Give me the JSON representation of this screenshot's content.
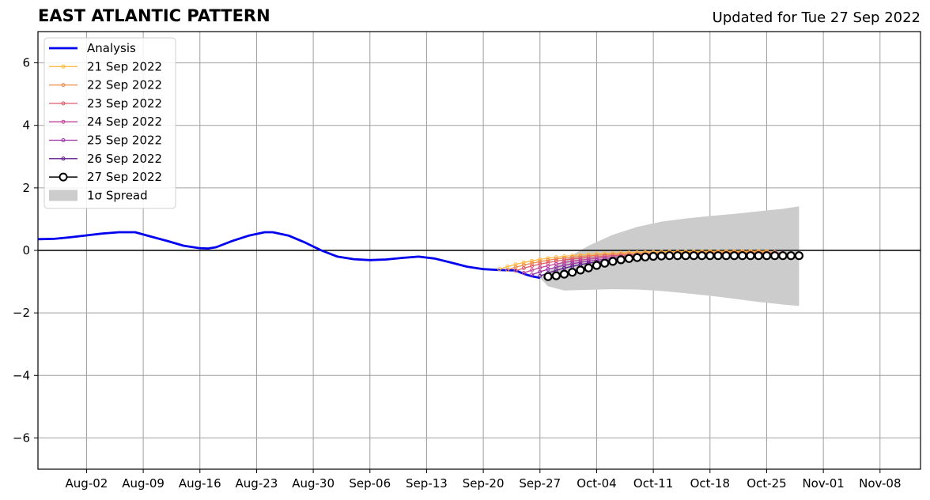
{
  "header": {
    "title": "EAST ATLANTIC PATTERN",
    "updated": "Updated for Tue 27 Sep 2022"
  },
  "chart_data": {
    "type": "line",
    "xlim": [
      "2022-07-27",
      "2022-11-13"
    ],
    "ylim": [
      -7,
      7
    ],
    "x_ticks": [
      {
        "date": "2022-08-02",
        "label": "Aug-02"
      },
      {
        "date": "2022-08-09",
        "label": "Aug-09"
      },
      {
        "date": "2022-08-16",
        "label": "Aug-16"
      },
      {
        "date": "2022-08-23",
        "label": "Aug-23"
      },
      {
        "date": "2022-08-30",
        "label": "Aug-30"
      },
      {
        "date": "2022-09-06",
        "label": "Sep-06"
      },
      {
        "date": "2022-09-13",
        "label": "Sep-13"
      },
      {
        "date": "2022-09-20",
        "label": "Sep-20"
      },
      {
        "date": "2022-09-27",
        "label": "Sep-27"
      },
      {
        "date": "2022-10-04",
        "label": "Oct-04"
      },
      {
        "date": "2022-10-11",
        "label": "Oct-11"
      },
      {
        "date": "2022-10-18",
        "label": "Oct-18"
      },
      {
        "date": "2022-10-25",
        "label": "Oct-25"
      },
      {
        "date": "2022-11-01",
        "label": "Nov-01"
      },
      {
        "date": "2022-11-08",
        "label": "Nov-08"
      }
    ],
    "y_ticks": [
      {
        "value": 6,
        "label": "6"
      },
      {
        "value": 4,
        "label": "4"
      },
      {
        "value": 2,
        "label": "2"
      },
      {
        "value": 0,
        "label": "0"
      },
      {
        "value": -2,
        "label": "−2"
      },
      {
        "value": -4,
        "label": "−4"
      },
      {
        "value": -6,
        "label": "−6"
      }
    ],
    "grid": true,
    "legend_position": "top-left",
    "analysis": {
      "name": "Analysis",
      "color": "#0000ee",
      "points": [
        [
          "2022-07-27",
          0.36
        ],
        [
          "2022-07-29",
          0.37
        ],
        [
          "2022-07-31",
          0.42
        ],
        [
          "2022-08-02",
          0.48
        ],
        [
          "2022-08-04",
          0.54
        ],
        [
          "2022-08-06",
          0.58
        ],
        [
          "2022-08-08",
          0.58
        ],
        [
          "2022-08-10",
          0.44
        ],
        [
          "2022-08-12",
          0.3
        ],
        [
          "2022-08-14",
          0.15
        ],
        [
          "2022-08-16",
          0.07
        ],
        [
          "2022-08-17",
          0.06
        ],
        [
          "2022-08-18",
          0.1
        ],
        [
          "2022-08-20",
          0.3
        ],
        [
          "2022-08-22",
          0.47
        ],
        [
          "2022-08-24",
          0.58
        ],
        [
          "2022-08-25",
          0.58
        ],
        [
          "2022-08-27",
          0.47
        ],
        [
          "2022-08-29",
          0.25
        ],
        [
          "2022-08-31",
          0.0
        ],
        [
          "2022-09-02",
          -0.2
        ],
        [
          "2022-09-04",
          -0.28
        ],
        [
          "2022-09-06",
          -0.31
        ],
        [
          "2022-09-08",
          -0.29
        ],
        [
          "2022-09-10",
          -0.24
        ],
        [
          "2022-09-12",
          -0.2
        ],
        [
          "2022-09-14",
          -0.26
        ],
        [
          "2022-09-16",
          -0.39
        ],
        [
          "2022-09-18",
          -0.52
        ],
        [
          "2022-09-20",
          -0.6
        ],
        [
          "2022-09-22",
          -0.63
        ],
        [
          "2022-09-24",
          -0.64
        ],
        [
          "2022-09-25",
          -0.75
        ],
        [
          "2022-09-26",
          -0.83
        ],
        [
          "2022-09-27",
          -0.88
        ]
      ]
    },
    "forecasts": [
      {
        "name": "21 Sep 2022",
        "color": "#ffbb44",
        "start": "2022-09-22",
        "end": "2022-10-25",
        "y0": -0.6,
        "y1": -0.02
      },
      {
        "name": "22 Sep 2022",
        "color": "#f08a4b",
        "start": "2022-09-23",
        "end": "2022-10-26",
        "y0": -0.62,
        "y1": -0.05
      },
      {
        "name": "23 Sep 2022",
        "color": "#e05a6c",
        "start": "2022-09-24",
        "end": "2022-10-27",
        "y0": -0.65,
        "y1": -0.08
      },
      {
        "name": "24 Sep 2022",
        "color": "#c2459a",
        "start": "2022-09-25",
        "end": "2022-10-28",
        "y0": -0.72,
        "y1": -0.1
      },
      {
        "name": "25 Sep 2022",
        "color": "#9e2fa5",
        "start": "2022-09-26",
        "end": "2022-10-29",
        "y0": -0.78,
        "y1": -0.12
      },
      {
        "name": "26 Sep 2022",
        "color": "#5e1a8c",
        "start": "2022-09-27",
        "end": "2022-10-29",
        "y0": -0.82,
        "y1": -0.14
      }
    ],
    "latest": {
      "name": "27 Sep 2022",
      "color": "#000000",
      "points": [
        [
          "2022-09-28",
          -0.84
        ],
        [
          "2022-09-29",
          -0.81
        ],
        [
          "2022-09-30",
          -0.76
        ],
        [
          "2022-10-01",
          -0.7
        ],
        [
          "2022-10-02",
          -0.63
        ],
        [
          "2022-10-03",
          -0.56
        ],
        [
          "2022-10-04",
          -0.48
        ],
        [
          "2022-10-05",
          -0.41
        ],
        [
          "2022-10-06",
          -0.35
        ],
        [
          "2022-10-07",
          -0.3
        ],
        [
          "2022-10-08",
          -0.26
        ],
        [
          "2022-10-09",
          -0.23
        ],
        [
          "2022-10-10",
          -0.21
        ],
        [
          "2022-10-11",
          -0.19
        ],
        [
          "2022-10-12",
          -0.18
        ],
        [
          "2022-10-13",
          -0.17
        ],
        [
          "2022-10-14",
          -0.17
        ],
        [
          "2022-10-15",
          -0.17
        ],
        [
          "2022-10-16",
          -0.17
        ],
        [
          "2022-10-17",
          -0.17
        ],
        [
          "2022-10-18",
          -0.17
        ],
        [
          "2022-10-19",
          -0.17
        ],
        [
          "2022-10-20",
          -0.17
        ],
        [
          "2022-10-21",
          -0.17
        ],
        [
          "2022-10-22",
          -0.17
        ],
        [
          "2022-10-23",
          -0.17
        ],
        [
          "2022-10-24",
          -0.17
        ],
        [
          "2022-10-25",
          -0.17
        ],
        [
          "2022-10-26",
          -0.17
        ],
        [
          "2022-10-27",
          -0.17
        ],
        [
          "2022-10-28",
          -0.17
        ],
        [
          "2022-10-29",
          -0.17
        ]
      ]
    },
    "spread": {
      "name": "1σ Spread",
      "color": "#cccccc",
      "upper": [
        [
          "2022-09-27",
          -0.88
        ],
        [
          "2022-09-30",
          -0.3
        ],
        [
          "2022-10-03",
          0.15
        ],
        [
          "2022-10-06",
          0.5
        ],
        [
          "2022-10-09",
          0.75
        ],
        [
          "2022-10-12",
          0.92
        ],
        [
          "2022-10-15",
          1.02
        ],
        [
          "2022-10-18",
          1.1
        ],
        [
          "2022-10-21",
          1.17
        ],
        [
          "2022-10-24",
          1.25
        ],
        [
          "2022-10-27",
          1.33
        ],
        [
          "2022-10-29",
          1.41
        ]
      ],
      "lower": [
        [
          "2022-09-27",
          -0.88
        ],
        [
          "2022-09-28",
          -1.15
        ],
        [
          "2022-09-30",
          -1.28
        ],
        [
          "2022-10-03",
          -1.26
        ],
        [
          "2022-10-06",
          -1.24
        ],
        [
          "2022-10-09",
          -1.25
        ],
        [
          "2022-10-12",
          -1.3
        ],
        [
          "2022-10-15",
          -1.37
        ],
        [
          "2022-10-18",
          -1.45
        ],
        [
          "2022-10-21",
          -1.55
        ],
        [
          "2022-10-24",
          -1.65
        ],
        [
          "2022-10-27",
          -1.73
        ],
        [
          "2022-10-29",
          -1.78
        ]
      ]
    },
    "legend": [
      {
        "label": "Analysis",
        "kind": "analysis",
        "color": "#0000ee"
      },
      {
        "label": "21 Sep 2022",
        "kind": "forecast",
        "color": "#ffbb44"
      },
      {
        "label": "22 Sep 2022",
        "kind": "forecast",
        "color": "#f08a4b"
      },
      {
        "label": "23 Sep 2022",
        "kind": "forecast",
        "color": "#e05a6c"
      },
      {
        "label": "24 Sep 2022",
        "kind": "forecast",
        "color": "#c2459a"
      },
      {
        "label": "25 Sep 2022",
        "kind": "forecast",
        "color": "#9e2fa5"
      },
      {
        "label": "26 Sep 2022",
        "kind": "forecast",
        "color": "#5e1a8c"
      },
      {
        "label": "27 Sep 2022",
        "kind": "latest",
        "color": "#000000"
      },
      {
        "label": "1σ Spread",
        "kind": "spread",
        "color": "#cccccc"
      }
    ]
  }
}
